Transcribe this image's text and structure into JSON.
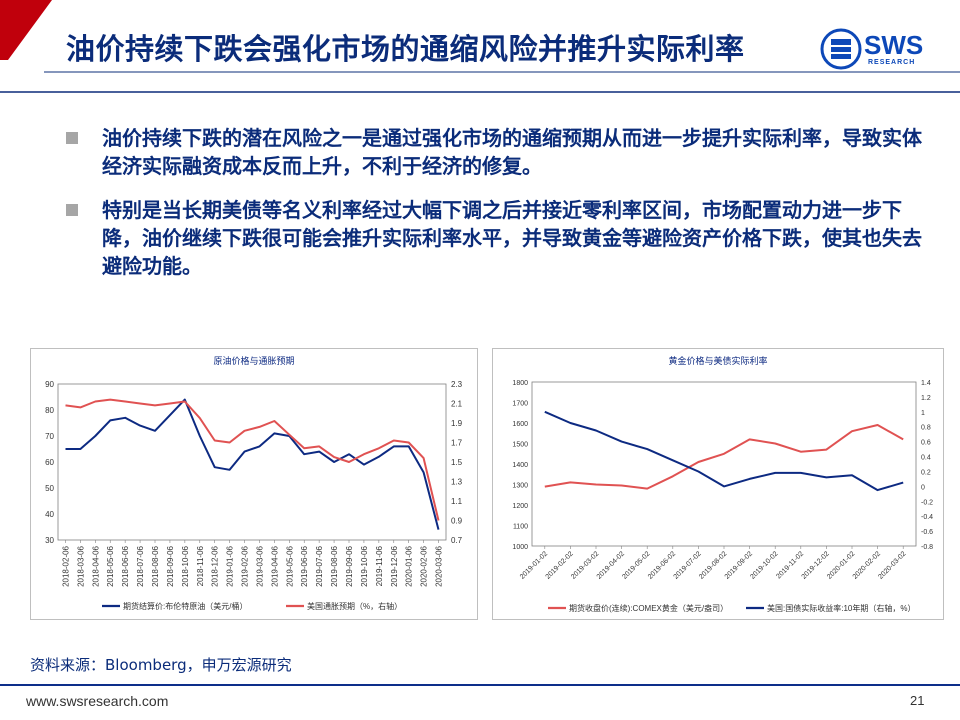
{
  "header": {
    "title": "油价持续下跌会强化市场的通缩风险并推升实际利率",
    "accent_color": "#c0000c"
  },
  "logo": {
    "name": "SWS",
    "sub": "RESEARCH"
  },
  "bullets": [
    "油价持续下跌的潜在风险之一是通过强化市场的通缩预期从而进一步提升实际利率，导致实体经济实际融资成本反而上升，不利于经济的修复。",
    "特别是当长期美债等名义利率经过大幅下调之后并接近零利率区间，市场配置动力进一步下降，油价继续下跌很可能会推升实际利率水平，并导致黄金等避险资产价格下跌，使其也失去避险功能。"
  ],
  "source": "资料来源：Bloomberg，申万宏源研究",
  "footer": {
    "url": "www.swsresearch.com",
    "page": "21"
  },
  "chart_data": [
    {
      "type": "line",
      "title": "原油价格与通胀预期",
      "x": [
        "2018-02-06",
        "2018-03-06",
        "2018-04-06",
        "2018-05-06",
        "2018-06-06",
        "2018-07-06",
        "2018-08-06",
        "2018-09-06",
        "2018-10-06",
        "2018-11-06",
        "2018-12-06",
        "2019-01-06",
        "2019-02-06",
        "2019-03-06",
        "2019-04-06",
        "2019-05-06",
        "2019-06-06",
        "2019-07-06",
        "2019-08-06",
        "2019-09-06",
        "2019-10-06",
        "2019-11-06",
        "2019-12-06",
        "2020-01-06",
        "2020-02-06",
        "2020-03-06"
      ],
      "ylim": [
        30,
        90
      ],
      "yticks": [
        30,
        40,
        50,
        60,
        70,
        80,
        90
      ],
      "y2lim": [
        0.7,
        2.3
      ],
      "y2ticks": [
        "0.7",
        "0.9",
        "1.1",
        "1.3",
        "1.5",
        "1.7",
        "1.9",
        "2.1",
        "2.3"
      ],
      "series": [
        {
          "name": "期货结算价:布伦特原油（美元/桶）",
          "color": "#0d2a82",
          "axis": "left",
          "values": [
            65,
            65,
            70,
            76,
            77,
            74,
            72,
            78,
            84,
            70,
            58,
            57,
            64,
            66,
            71,
            70,
            63,
            64,
            60,
            63,
            59,
            62,
            66,
            66,
            56,
            34
          ]
        },
        {
          "name": "美国通胀预期（%，右轴）",
          "color": "#e05252",
          "axis": "right",
          "values": [
            2.08,
            2.06,
            2.12,
            2.14,
            2.12,
            2.1,
            2.08,
            2.1,
            2.12,
            1.95,
            1.72,
            1.7,
            1.82,
            1.86,
            1.92,
            1.78,
            1.64,
            1.66,
            1.55,
            1.5,
            1.58,
            1.64,
            1.72,
            1.7,
            1.54,
            0.9
          ]
        }
      ]
    },
    {
      "type": "line",
      "title": "黄金价格与美债实际利率",
      "x": [
        "2019-01-02",
        "2019-02-02",
        "2019-03-02",
        "2019-04-02",
        "2019-05-02",
        "2019-06-02",
        "2019-07-02",
        "2019-08-02",
        "2019-09-02",
        "2019-10-02",
        "2019-11-02",
        "2019-12-02",
        "2020-01-02",
        "2020-02-02",
        "2020-03-02"
      ],
      "ylim": [
        1000,
        1800
      ],
      "yticks": [
        1000,
        1100,
        1200,
        1300,
        1400,
        1500,
        1600,
        1700,
        1800
      ],
      "y2lim": [
        -0.8,
        1.4
      ],
      "y2ticks": [
        "-0.8",
        "-0.6",
        "-0.4",
        "-0.2",
        "0",
        "0.2",
        "0.4",
        "0.6",
        "0.8",
        "1",
        "1.2",
        "1.4"
      ],
      "series": [
        {
          "name": "期货收盘价(连续):COMEX黄金（美元/盎司）",
          "color": "#e05252",
          "axis": "left",
          "values": [
            1290,
            1310,
            1300,
            1295,
            1280,
            1340,
            1410,
            1450,
            1520,
            1500,
            1460,
            1470,
            1560,
            1590,
            1520
          ]
        },
        {
          "name": "美国:国债实际收益率:10年期（右轴，%）",
          "color": "#0d2a82",
          "axis": "right",
          "values": [
            1.0,
            0.85,
            0.75,
            0.6,
            0.5,
            0.35,
            0.2,
            0.0,
            0.1,
            0.18,
            0.18,
            0.12,
            0.15,
            -0.05,
            0.05
          ]
        }
      ]
    }
  ]
}
